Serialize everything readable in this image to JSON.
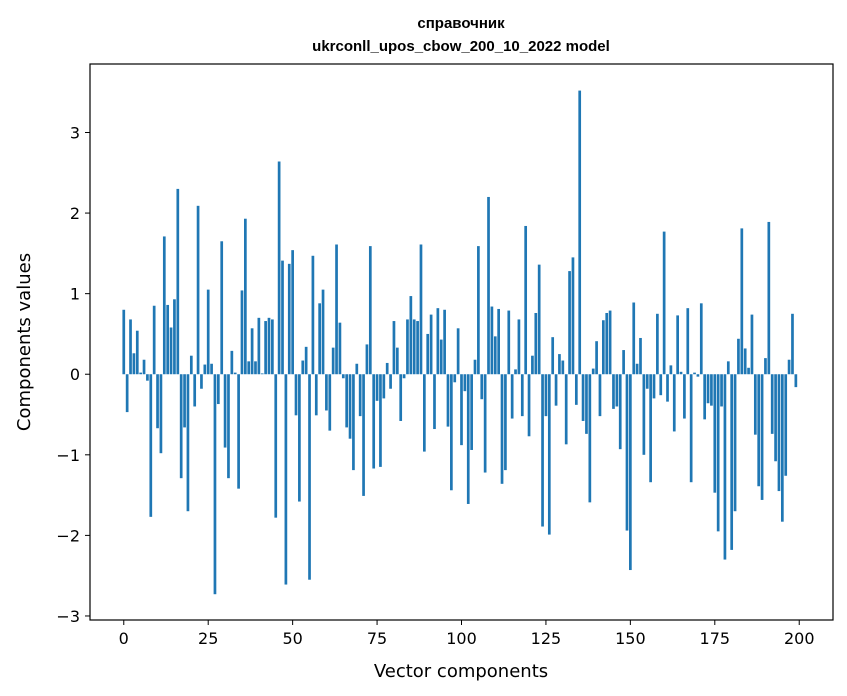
{
  "chart_data": {
    "type": "bar",
    "title": "справочник",
    "subtitle": "ukrconll_upos_cbow_200_10_2022 model",
    "xlabel": "Vector components",
    "ylabel": "Components values",
    "xlim": [
      -10,
      210
    ],
    "ylim": [
      -3.05,
      3.85
    ],
    "xticks": [
      0,
      25,
      50,
      75,
      100,
      125,
      150,
      175,
      200
    ],
    "yticks": [
      -3,
      -2,
      -1,
      0,
      1,
      2,
      3
    ],
    "color": "#1f77b4",
    "grid": false,
    "values": [
      0.8,
      -0.47,
      0.68,
      0.26,
      0.54,
      0.02,
      0.18,
      -0.08,
      -1.77,
      0.85,
      -0.67,
      -0.98,
      1.71,
      0.86,
      0.58,
      0.93,
      2.3,
      -1.29,
      -0.66,
      -1.7,
      0.23,
      -0.4,
      2.09,
      -0.18,
      0.12,
      1.05,
      0.13,
      -2.73,
      -0.37,
      1.65,
      -0.91,
      -1.29,
      0.29,
      0.02,
      -1.42,
      1.04,
      1.93,
      0.16,
      0.57,
      0.16,
      0.7,
      0.01,
      0.66,
      0.7,
      0.68,
      -1.78,
      2.64,
      1.41,
      -2.61,
      1.37,
      1.54,
      -0.51,
      -1.58,
      0.17,
      0.34,
      -2.55,
      1.47,
      -0.51,
      0.88,
      1.05,
      -0.45,
      -0.7,
      0.33,
      1.61,
      0.64,
      -0.05,
      -0.66,
      -0.8,
      -1.19,
      0.13,
      -0.52,
      -1.51,
      0.37,
      1.59,
      -1.17,
      -0.33,
      -1.15,
      -0.3,
      0.14,
      -0.18,
      0.66,
      0.33,
      -0.58,
      -0.05,
      0.68,
      0.97,
      0.68,
      0.66,
      1.61,
      -0.96,
      0.5,
      0.74,
      -0.68,
      0.82,
      0.43,
      0.8,
      -0.65,
      -1.44,
      -0.1,
      0.57,
      -0.88,
      -0.21,
      -1.61,
      -0.94,
      0.18,
      1.59,
      -0.31,
      -1.22,
      2.2,
      0.84,
      0.47,
      0.81,
      -1.36,
      -1.19,
      0.79,
      -0.55,
      0.06,
      0.68,
      -0.52,
      1.84,
      -0.77,
      0.23,
      0.76,
      1.36,
      -1.89,
      -0.52,
      -1.99,
      0.46,
      -0.39,
      0.25,
      0.17,
      -0.87,
      1.28,
      1.45,
      -0.38,
      3.52,
      -0.58,
      -0.74,
      -1.59,
      0.07,
      0.41,
      -0.52,
      0.67,
      0.76,
      0.79,
      -0.43,
      -0.4,
      -0.93,
      0.3,
      -1.94,
      -2.43,
      0.89,
      0.13,
      0.45,
      -1.0,
      -0.18,
      -1.34,
      -0.3,
      0.75,
      -0.26,
      1.77,
      -0.34,
      0.11,
      -0.71,
      0.73,
      0.03,
      -0.55,
      0.82,
      -1.34,
      0.02,
      -0.03,
      0.88,
      -0.56,
      -0.36,
      -0.39,
      -1.47,
      -1.95,
      -0.4,
      -2.3,
      0.16,
      -2.18,
      -1.7,
      0.44,
      1.81,
      0.32,
      0.08,
      0.74,
      -0.75,
      -1.39,
      -1.56,
      0.2,
      1.89,
      -0.74,
      -1.08,
      -1.45,
      -1.83,
      -1.26,
      0.18,
      0.75,
      -0.16
    ]
  }
}
